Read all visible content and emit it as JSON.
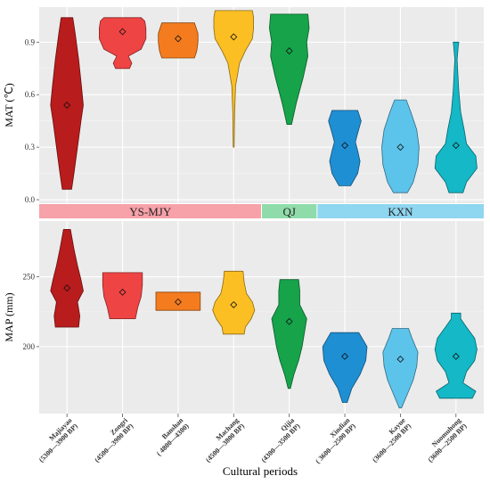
{
  "chart_data": {
    "type": "violin",
    "xlabel": "Cultural periods",
    "categories": [
      {
        "name": "Majiayao",
        "range": "(5300—3900 BP)",
        "color": "#b91c1c"
      },
      {
        "name": "Zongri",
        "range": "(4500—3900 BP)",
        "color": "#ef4444"
      },
      {
        "name": "Banshan",
        "range": "( 4800—4300)",
        "color": "#f47c1e"
      },
      {
        "name": "Machang",
        "range": "(4500—3800 BP)",
        "color": "#fbbf24"
      },
      {
        "name": "Qijia",
        "range": "(4300—3500 BP)",
        "color": "#16a34a"
      },
      {
        "name": "Xindian",
        "range": "( 3600—2500 BP)",
        "color": "#1f8fd4"
      },
      {
        "name": "Kayue",
        "range": "(3600—2500 BP)",
        "color": "#5cc3ea"
      },
      {
        "name": "Nuomuhong",
        "range": "(3600—2500 BP)",
        "color": "#14b8c6"
      }
    ],
    "groups": [
      {
        "label": "YS-MJY",
        "color": "#f7a1a8",
        "from": 0,
        "to": 3
      },
      {
        "label": "QJ",
        "color": "#8fdcaa",
        "from": 4,
        "to": 4
      },
      {
        "label": "KXN",
        "color": "#8fd6f0",
        "from": 5,
        "to": 7
      }
    ],
    "panels": [
      {
        "id": "mat",
        "ylabel": "MAT (℃)",
        "ylim": [
          -0.02,
          1.1
        ],
        "yticks": [
          0.0,
          0.3,
          0.6,
          0.9
        ],
        "tick_labels": [
          "0.0",
          "0.3",
          "0.6",
          "0.9"
        ],
        "series": [
          {
            "mean": 0.54,
            "profile": [
              [
                0.06,
                0.2
              ],
              [
                0.15,
                0.3
              ],
              [
                0.3,
                0.45
              ],
              [
                0.45,
                0.6
              ],
              [
                0.54,
                0.7
              ],
              [
                0.65,
                0.62
              ],
              [
                0.8,
                0.5
              ],
              [
                0.95,
                0.35
              ],
              [
                1.04,
                0.25
              ]
            ]
          },
          {
            "mean": 0.96,
            "profile": [
              [
                0.75,
                0.3
              ],
              [
                0.78,
                0.4
              ],
              [
                0.82,
                0.25
              ],
              [
                0.86,
                0.8
              ],
              [
                0.92,
                1.0
              ],
              [
                0.98,
                1.0
              ],
              [
                1.02,
                0.95
              ],
              [
                1.04,
                0.8
              ]
            ]
          },
          {
            "mean": 0.92,
            "profile": [
              [
                0.81,
                0.7
              ],
              [
                0.85,
                0.8
              ],
              [
                0.9,
                0.85
              ],
              [
                0.95,
                0.85
              ],
              [
                1.01,
                0.7
              ]
            ]
          },
          {
            "mean": 0.93,
            "profile": [
              [
                0.3,
                0.02
              ],
              [
                0.5,
                0.04
              ],
              [
                0.65,
                0.08
              ],
              [
                0.78,
                0.25
              ],
              [
                0.85,
                0.5
              ],
              [
                0.92,
                0.8
              ],
              [
                0.98,
                0.85
              ],
              [
                1.04,
                0.85
              ],
              [
                1.08,
                0.8
              ]
            ]
          },
          {
            "mean": 0.85,
            "profile": [
              [
                0.43,
                0.1
              ],
              [
                0.55,
                0.3
              ],
              [
                0.7,
                0.6
              ],
              [
                0.82,
                0.8
              ],
              [
                0.9,
                0.75
              ],
              [
                0.98,
                0.85
              ],
              [
                1.06,
                0.8
              ]
            ]
          },
          {
            "mean": 0.31,
            "profile": [
              [
                0.08,
                0.25
              ],
              [
                0.15,
                0.55
              ],
              [
                0.22,
                0.65
              ],
              [
                0.28,
                0.55
              ],
              [
                0.33,
                0.45
              ],
              [
                0.38,
                0.55
              ],
              [
                0.45,
                0.7
              ],
              [
                0.51,
                0.55
              ]
            ]
          },
          {
            "mean": 0.3,
            "profile": [
              [
                0.04,
                0.3
              ],
              [
                0.1,
                0.55
              ],
              [
                0.2,
                0.75
              ],
              [
                0.3,
                0.8
              ],
              [
                0.4,
                0.7
              ],
              [
                0.5,
                0.45
              ],
              [
                0.57,
                0.25
              ]
            ]
          },
          {
            "mean": 0.31,
            "profile": [
              [
                0.04,
                0.3
              ],
              [
                0.1,
                0.45
              ],
              [
                0.18,
                0.9
              ],
              [
                0.25,
                0.85
              ],
              [
                0.32,
                0.45
              ],
              [
                0.4,
                0.35
              ],
              [
                0.5,
                0.2
              ],
              [
                0.62,
                0.12
              ],
              [
                0.72,
                0.08
              ],
              [
                0.8,
                0.05
              ],
              [
                0.88,
                0.1
              ],
              [
                0.9,
                0.12
              ]
            ]
          }
        ]
      },
      {
        "id": "map",
        "ylabel": "MAP (mm)",
        "ylim": [
          152,
          290
        ],
        "yticks": [
          200,
          250
        ],
        "tick_labels": [
          "200",
          "250"
        ],
        "series": [
          {
            "mean": 242,
            "profile": [
              [
                214,
                0.5
              ],
              [
                222,
                0.55
              ],
              [
                232,
                0.45
              ],
              [
                240,
                0.7
              ],
              [
                248,
                0.6
              ],
              [
                258,
                0.45
              ],
              [
                270,
                0.3
              ],
              [
                284,
                0.15
              ]
            ]
          },
          {
            "mean": 239,
            "profile": [
              [
                220,
                0.55
              ],
              [
                228,
                0.65
              ],
              [
                236,
                0.8
              ],
              [
                244,
                0.85
              ],
              [
                253,
                0.85
              ]
            ]
          },
          {
            "mean": 232,
            "profile": [
              [
                226,
                0.95
              ],
              [
                231,
                0.95
              ],
              [
                234,
                0.95
              ],
              [
                239,
                0.95
              ]
            ]
          },
          {
            "mean": 230,
            "profile": [
              [
                209,
                0.45
              ],
              [
                214,
                0.5
              ],
              [
                220,
                0.75
              ],
              [
                226,
                0.9
              ],
              [
                232,
                0.8
              ],
              [
                238,
                0.55
              ],
              [
                246,
                0.45
              ],
              [
                254,
                0.4
              ]
            ]
          },
          {
            "mean": 218,
            "profile": [
              [
                170,
                0.05
              ],
              [
                180,
                0.2
              ],
              [
                190,
                0.4
              ],
              [
                200,
                0.55
              ],
              [
                210,
                0.65
              ],
              [
                220,
                0.75
              ],
              [
                230,
                0.45
              ],
              [
                240,
                0.45
              ],
              [
                248,
                0.4
              ]
            ]
          },
          {
            "mean": 193,
            "profile": [
              [
                160,
                0.1
              ],
              [
                170,
                0.3
              ],
              [
                180,
                0.65
              ],
              [
                190,
                0.9
              ],
              [
                200,
                0.95
              ],
              [
                210,
                0.6
              ]
            ]
          },
          {
            "mean": 191,
            "profile": [
              [
                156,
                0.05
              ],
              [
                166,
                0.3
              ],
              [
                176,
                0.55
              ],
              [
                186,
                0.7
              ],
              [
                196,
                0.75
              ],
              [
                206,
                0.5
              ],
              [
                213,
                0.35
              ]
            ]
          },
          {
            "mean": 193,
            "profile": [
              [
                163,
                0.7
              ],
              [
                168,
                0.85
              ],
              [
                174,
                0.3
              ],
              [
                182,
                0.45
              ],
              [
                190,
                0.8
              ],
              [
                198,
                0.9
              ],
              [
                206,
                0.8
              ],
              [
                214,
                0.45
              ],
              [
                220,
                0.2
              ],
              [
                224,
                0.2
              ]
            ]
          }
        ]
      }
    ]
  }
}
